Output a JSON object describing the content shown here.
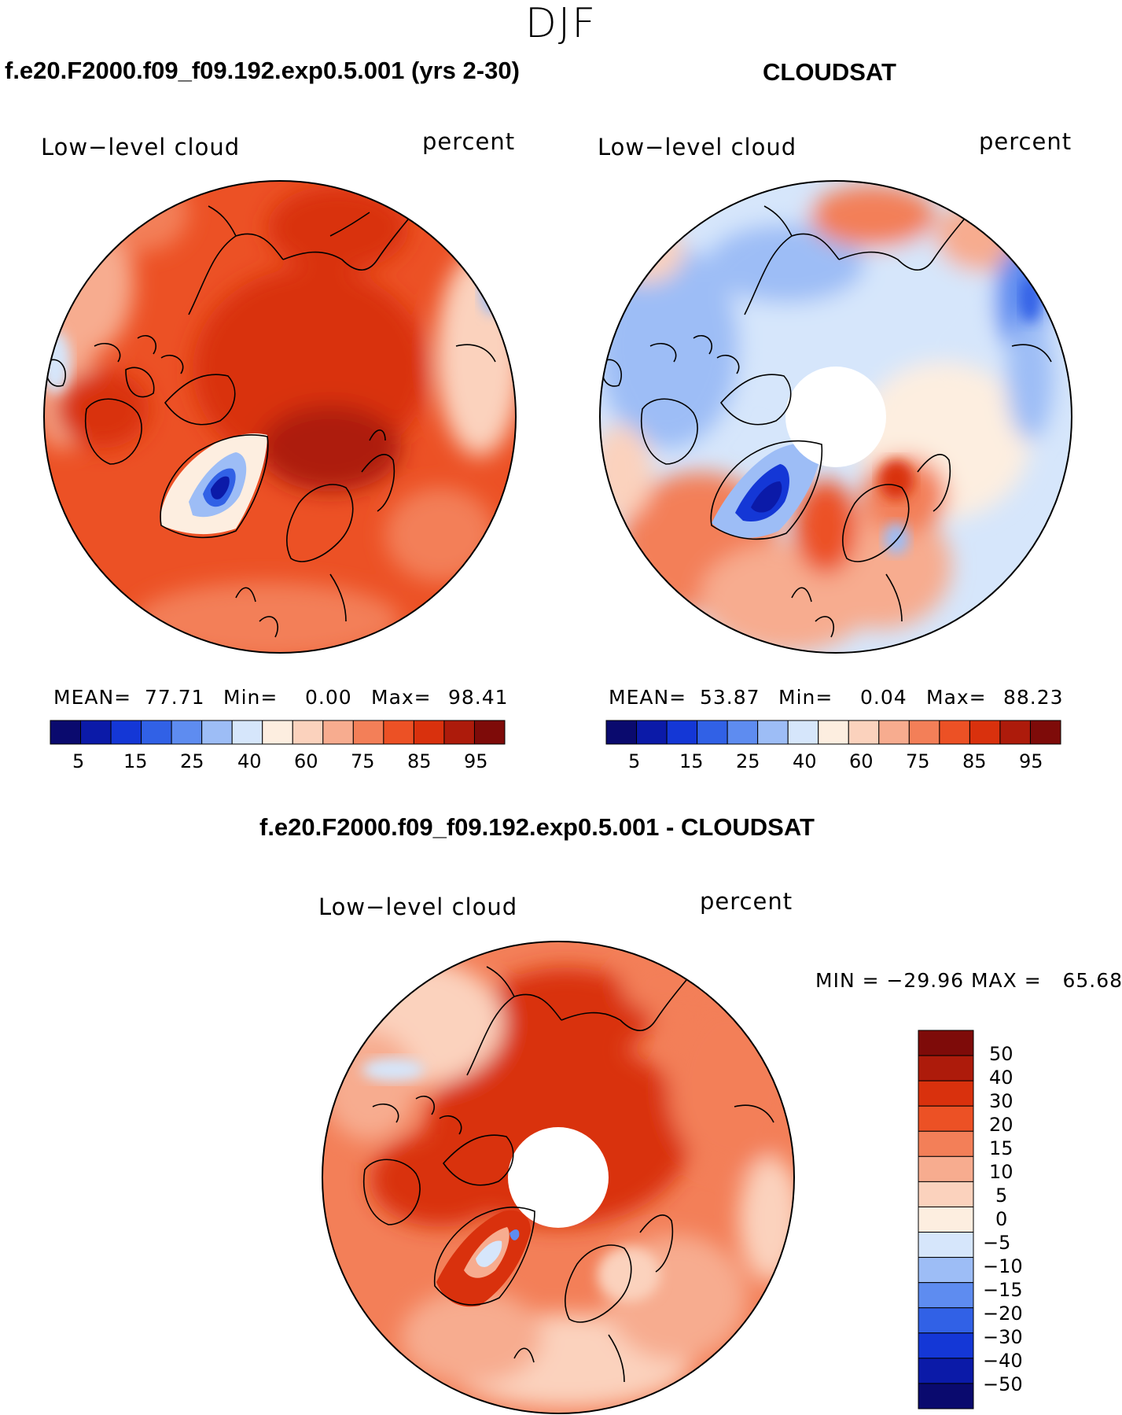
{
  "season": "DJF",
  "colors": {
    "abs": [
      "#0a0a6e",
      "#0b1aa8",
      "#1437d6",
      "#3161e6",
      "#5e8cf0",
      "#9dbdf6",
      "#d6e6fb",
      "#fdeee0",
      "#fbd2bd",
      "#f7ac8f",
      "#f37f58",
      "#ec5125",
      "#d9310d",
      "#ad1b0b",
      "#7e0b09"
    ],
    "diff": [
      "#0a0a6e",
      "#0b1aa8",
      "#1437d6",
      "#3161e6",
      "#5e8cf0",
      "#9dbdf6",
      "#d6e6fb",
      "#fdeee0",
      "#fbd2bd",
      "#f7ac8f",
      "#f37f58",
      "#ec5125",
      "#d9310d",
      "#ad1b0b",
      "#7e0b09"
    ],
    "coastline": "#000000"
  },
  "panels": [
    {
      "title": "f.e20.F2000.f09_f09.192.exp0.5.001 (yrs 2-30)",
      "variable": "Low−level cloud",
      "units": "percent",
      "mean_label": "MEAN=",
      "mean": "77.71",
      "min_label": "Min=",
      "min": "0.00",
      "max_label": "Max=",
      "max": "98.41",
      "colorbar_ticks": [
        "5",
        "15",
        "25",
        "40",
        "60",
        "75",
        "85",
        "95"
      ]
    },
    {
      "title": "CLOUDSAT",
      "variable": "Low−level cloud",
      "units": "percent",
      "mean_label": "MEAN=",
      "mean": "53.87",
      "min_label": "Min=",
      "min": "0.04",
      "max_label": "Max=",
      "max": "88.23",
      "colorbar_ticks": [
        "5",
        "15",
        "25",
        "40",
        "60",
        "75",
        "85",
        "95"
      ]
    }
  ],
  "difference": {
    "title": "f.e20.F2000.f09_f09.192.exp0.5.001 - CLOUDSAT",
    "variable": "Low−level cloud",
    "units": "percent",
    "minmax": "MIN = −29.96 MAX =   65.68",
    "colorbar_ticks": [
      "50",
      "40",
      "30",
      "20",
      "15",
      "10",
      "5",
      "0",
      "−5",
      "−10",
      "−15",
      "−20",
      "−30",
      "−40",
      "−50"
    ]
  }
}
